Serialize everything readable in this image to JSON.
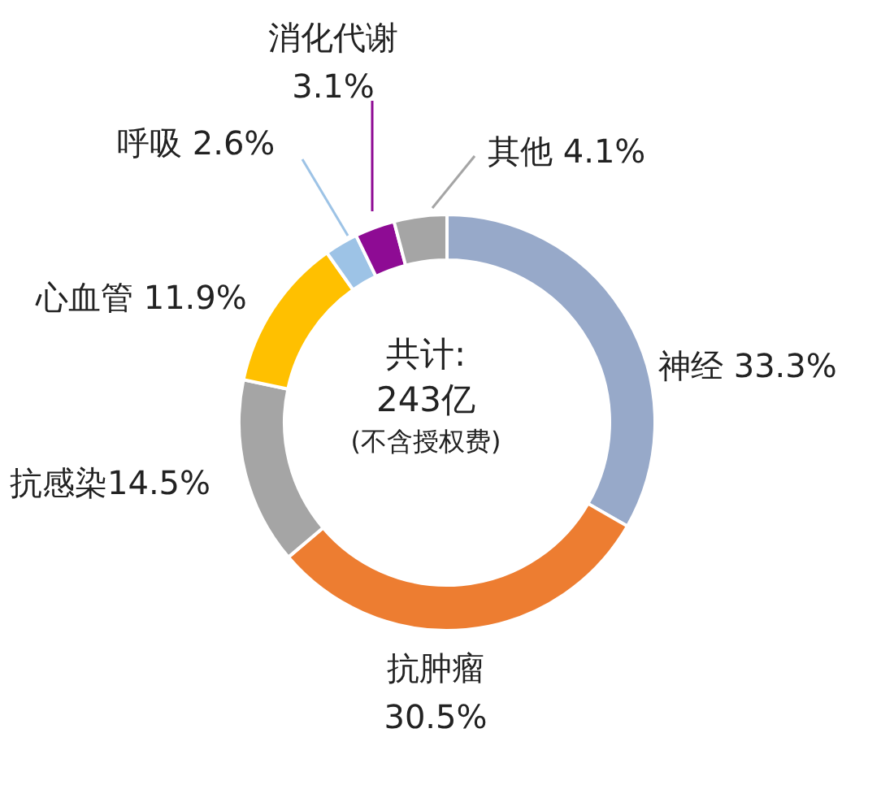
{
  "chart_data": {
    "type": "donut",
    "categories": [
      "神经",
      "抗肿瘤",
      "抗感染",
      "心血管",
      "呼吸",
      "消化代谢",
      "其他"
    ],
    "values": [
      33.3,
      30.5,
      14.5,
      11.9,
      2.6,
      3.1,
      4.1
    ],
    "value_labels": [
      "33.3%",
      "30.5%",
      "14.5%",
      "11.9%",
      "2.6%",
      "3.1%",
      "4.1%"
    ],
    "colors": [
      "#97a9c9",
      "#ed7d31",
      "#a5a5a5",
      "#ffc000",
      "#9dc3e6",
      "#8e0b94",
      "#a5a5a5"
    ],
    "annotations": [
      "共计:",
      "243亿",
      "(不含授权费)"
    ]
  }
}
